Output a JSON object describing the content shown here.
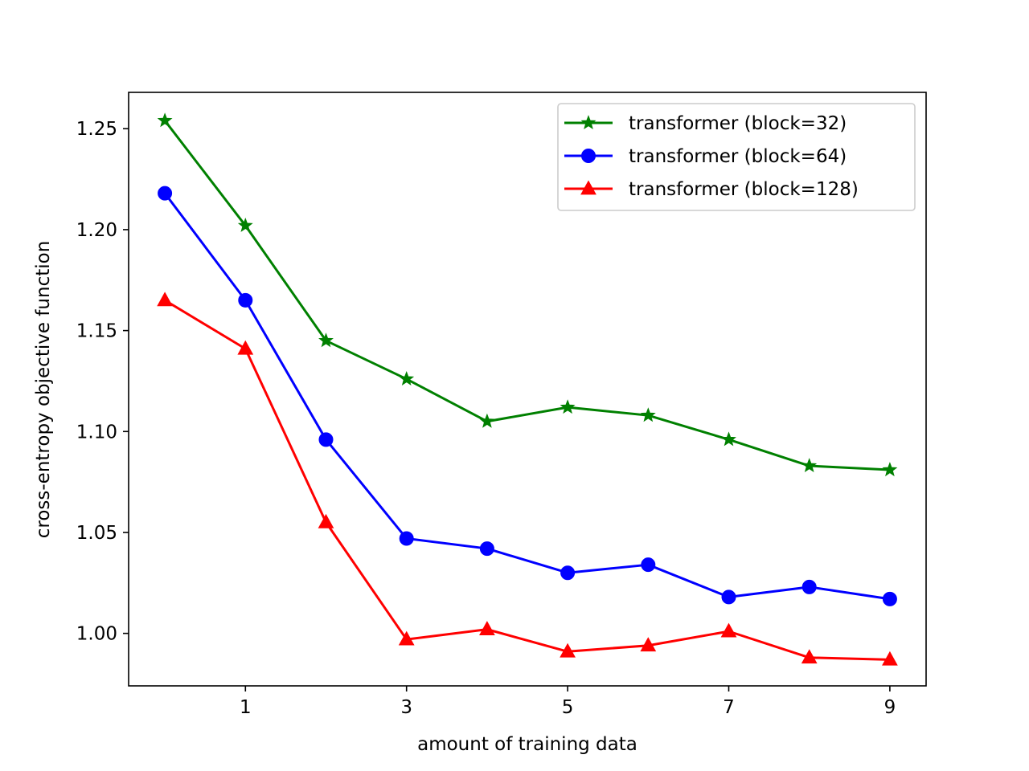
{
  "chart_data": {
    "type": "line",
    "xlabel": "amount of training data",
    "ylabel": "cross-entropy objective function",
    "xlim": [
      -0.45,
      9.45
    ],
    "ylim": [
      0.974,
      1.268
    ],
    "xticks": [
      1,
      3,
      5,
      7,
      9
    ],
    "yticks": [
      1.0,
      1.05,
      1.1,
      1.15,
      1.2,
      1.25
    ],
    "ytick_labels": [
      "1.00",
      "1.05",
      "1.10",
      "1.15",
      "1.20",
      "1.25"
    ],
    "grid": false,
    "legend_position": "top-right",
    "x": [
      0,
      1,
      2,
      3,
      4,
      5,
      6,
      7,
      8,
      9
    ],
    "series": [
      {
        "name": "transformer (block=32)",
        "color": "#008000",
        "marker": "star",
        "values": [
          1.254,
          1.202,
          1.145,
          1.126,
          1.105,
          1.112,
          1.108,
          1.096,
          1.083,
          1.081
        ]
      },
      {
        "name": "transformer (block=64)",
        "color": "#0000ff",
        "marker": "circle",
        "values": [
          1.218,
          1.165,
          1.096,
          1.047,
          1.042,
          1.03,
          1.034,
          1.018,
          1.023,
          1.017
        ]
      },
      {
        "name": "transformer (block=128)",
        "color": "#ff0000",
        "marker": "triangle",
        "values": [
          1.165,
          1.141,
          1.055,
          0.997,
          1.002,
          0.991,
          0.994,
          1.001,
          0.988,
          0.987
        ]
      }
    ]
  }
}
